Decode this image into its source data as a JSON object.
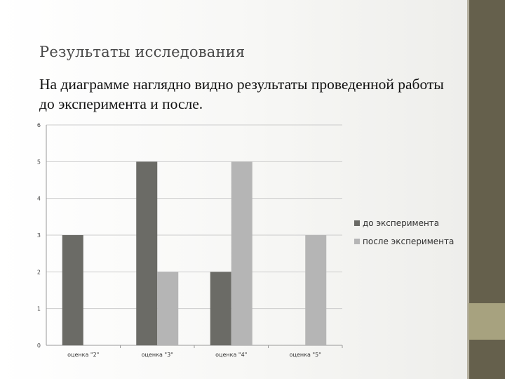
{
  "slide": {
    "title": "Результаты исследования",
    "body": "На диаграмме наглядно видно результаты проведенной работы до эксперимента и после."
  },
  "colors": {
    "series_before": "#6b6b66",
    "series_after": "#b5b5b5",
    "side_bar": "#65604c",
    "side_accent": "#a7a27f",
    "gridline": "#cccccc"
  },
  "chart_data": {
    "type": "bar",
    "title": "",
    "xlabel": "",
    "ylabel": "",
    "categories": [
      "оценка \"2\"",
      "оценка \"3\"",
      "оценка \"4\"",
      "оценка \"5\""
    ],
    "series": [
      {
        "name": "до эксперимента",
        "values": [
          3,
          5,
          2,
          0
        ]
      },
      {
        "name": "после эксперимента",
        "values": [
          0,
          2,
          5,
          3
        ]
      }
    ],
    "ylim": [
      0,
      6
    ],
    "yticks": [
      0,
      1,
      2,
      3,
      4,
      5,
      6
    ],
    "grid": true,
    "legend": "right"
  }
}
